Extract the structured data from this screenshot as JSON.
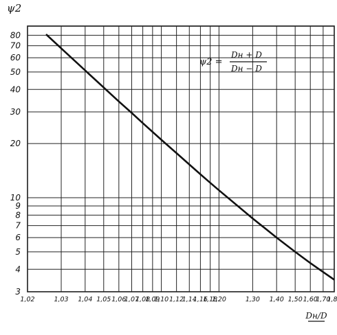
{
  "chart_data": {
    "type": "line",
    "title": "",
    "ylabel": "ψ2",
    "xlabel": "Dн/D",
    "formula": {
      "lhs": "ψ2 =",
      "numerator": "Dн + D",
      "denominator": "Dн − D"
    },
    "x_scale": "log(x-1)",
    "y_scale": "log",
    "xlim": [
      1.02,
      1.8
    ],
    "ylim": [
      3,
      90
    ],
    "x_ticks": [
      1.02,
      1.03,
      1.04,
      1.05,
      1.06,
      1.07,
      1.08,
      1.09,
      1.1,
      1.12,
      1.14,
      1.16,
      1.18,
      1.2,
      1.3,
      1.4,
      1.5,
      1.6,
      1.7,
      1.8
    ],
    "x_tick_labels": [
      "1,02",
      "1,03",
      "1,04",
      "1,05",
      "1,06",
      "1,07",
      "1,08",
      "1,09",
      "1,10",
      "1,12",
      "1,14",
      "1,16",
      "1,18",
      "1,20",
      "1,30",
      "1,40",
      "1,50",
      "1,60",
      "1,70",
      "1,80"
    ],
    "y_ticks": [
      3,
      4,
      5,
      6,
      7,
      8,
      9,
      10,
      20,
      30,
      40,
      50,
      60,
      70,
      80
    ],
    "y_tick_labels": [
      "3",
      "4",
      "5",
      "6",
      "7",
      "8",
      "9",
      "10",
      "20",
      "30",
      "40",
      "50",
      "60",
      "70",
      "80"
    ],
    "grid": true,
    "series": [
      {
        "x": [
          1.025,
          1.03,
          1.04,
          1.05,
          1.06,
          1.07,
          1.08,
          1.1,
          1.12,
          1.14,
          1.16,
          1.18,
          1.2,
          1.3,
          1.4,
          1.5,
          1.6,
          1.7,
          1.8
        ],
        "values": [
          81,
          67.7,
          51,
          41,
          34.3,
          29.6,
          26,
          21,
          17.7,
          15.3,
          13.5,
          12.1,
          11,
          7.67,
          6,
          5,
          4.33,
          3.86,
          3.5
        ]
      }
    ]
  }
}
